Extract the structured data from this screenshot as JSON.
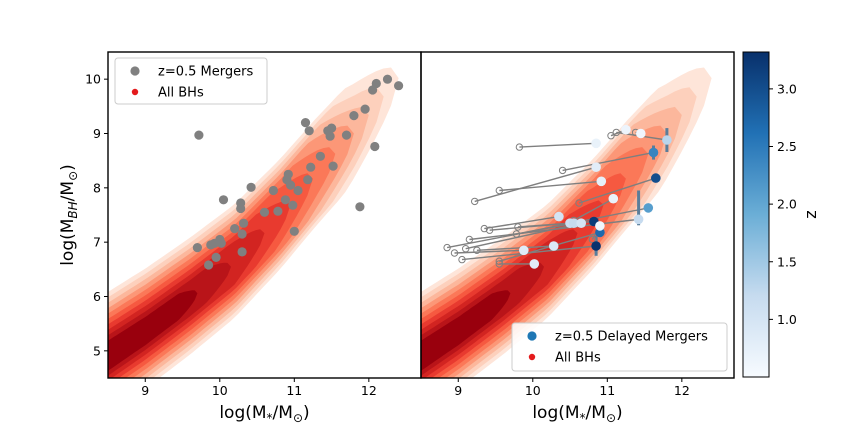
{
  "figure": {
    "panels": [
      "left",
      "right"
    ],
    "colorbar": {
      "label": "z",
      "range": [
        0.5,
        3.32
      ],
      "ticks": [
        1.0,
        1.5,
        2.0,
        2.5,
        3.0
      ],
      "tick_labels": [
        "1.0",
        "1.5",
        "2.0",
        "2.5",
        "3.0"
      ],
      "colormap": "Blues",
      "colors": [
        "#f7fbff",
        "#c6dbef",
        "#6baed6",
        "#2171b5",
        "#08306b"
      ]
    }
  },
  "chart_data": [
    {
      "type": "scatter",
      "panel": "left",
      "title": "",
      "xlabel": "log(M*/M⊙)",
      "ylabel": "log(M_BH/M⊙)",
      "xlim": [
        8.5,
        12.7
      ],
      "ylim": [
        4.5,
        10.5
      ],
      "xticks": [
        9,
        10,
        11,
        12
      ],
      "yticks": [
        5,
        6,
        7,
        8,
        9,
        10
      ],
      "legend": {
        "placement": "top-left",
        "entries": [
          {
            "label": "z=0.5 Mergers",
            "color": "#808080",
            "marker": "circle"
          },
          {
            "label": "All BHs",
            "color": "#e41a1c",
            "marker": "circle-small"
          }
        ]
      },
      "density_background": {
        "name": "All BHs",
        "colormap": "Reds",
        "levels": 10
      },
      "series": [
        {
          "name": "z=0.5 Mergers",
          "color": "#808080",
          "points": [
            [
              9.72,
              8.97
            ],
            [
              9.7,
              6.9
            ],
            [
              9.85,
              6.58
            ],
            [
              9.88,
              6.95
            ],
            [
              9.93,
              6.98
            ],
            [
              9.95,
              6.72
            ],
            [
              10.0,
              7.05
            ],
            [
              10.02,
              6.98
            ],
            [
              10.05,
              7.78
            ],
            [
              10.2,
              7.25
            ],
            [
              10.28,
              7.62
            ],
            [
              10.28,
              7.72
            ],
            [
              10.3,
              6.82
            ],
            [
              10.3,
              7.15
            ],
            [
              10.32,
              7.35
            ],
            [
              10.42,
              8.01
            ],
            [
              10.6,
              7.55
            ],
            [
              10.72,
              7.95
            ],
            [
              10.78,
              7.57
            ],
            [
              10.88,
              7.78
            ],
            [
              10.9,
              8.15
            ],
            [
              10.92,
              8.25
            ],
            [
              10.95,
              8.05
            ],
            [
              10.98,
              7.68
            ],
            [
              11.0,
              7.2
            ],
            [
              11.05,
              7.95
            ],
            [
              11.15,
              9.2
            ],
            [
              11.18,
              8.15
            ],
            [
              11.2,
              9.05
            ],
            [
              11.22,
              8.38
            ],
            [
              11.35,
              8.58
            ],
            [
              11.45,
              9.05
            ],
            [
              11.48,
              8.95
            ],
            [
              11.5,
              9.1
            ],
            [
              11.52,
              8.4
            ],
            [
              11.7,
              8.97
            ],
            [
              11.8,
              9.33
            ],
            [
              11.88,
              7.65
            ],
            [
              11.95,
              9.45
            ],
            [
              12.05,
              9.8
            ],
            [
              12.08,
              8.76
            ],
            [
              12.1,
              9.92
            ],
            [
              12.25,
              10.0
            ],
            [
              12.4,
              9.88
            ]
          ]
        }
      ]
    },
    {
      "type": "scatter",
      "panel": "right",
      "title": "",
      "xlabel": "log(M*/M⊙)",
      "ylabel": "",
      "xlim": [
        8.5,
        12.7
      ],
      "ylim": [
        4.5,
        10.5
      ],
      "xticks": [
        9,
        10,
        11,
        12
      ],
      "legend": {
        "placement": "bottom-right",
        "entries": [
          {
            "label": "z=0.5 Delayed Mergers",
            "color": "#1f77b4",
            "marker": "circle"
          },
          {
            "label": "All BHs",
            "color": "#e41a1c",
            "marker": "circle-small"
          }
        ]
      },
      "density_background": {
        "name": "All BHs",
        "colormap": "Reds",
        "levels": 10
      },
      "series": [
        {
          "name": "z=0.5 Delayed Mergers",
          "color_by": "z",
          "segments": [
            {
              "x0": 9.82,
              "y0": 8.75,
              "x1": 10.85,
              "y1": 8.82,
              "z": 0.7
            },
            {
              "x0": 9.55,
              "y0": 7.95,
              "x1": 10.92,
              "y1": 8.12,
              "z": 0.75
            },
            {
              "x0": 9.22,
              "y0": 7.75,
              "x1": 10.85,
              "y1": 8.38,
              "z": 0.8
            },
            {
              "x0": 10.4,
              "y0": 8.32,
              "x1": 11.62,
              "y1": 8.65,
              "z": 2.4
            },
            {
              "x0": 10.62,
              "y0": 7.72,
              "x1": 11.65,
              "y1": 8.18,
              "z": 3.0
            },
            {
              "x0": 11.12,
              "y0": 9.02,
              "x1": 11.8,
              "y1": 8.88,
              "z": 1.3
            },
            {
              "x0": 11.38,
              "y0": 9.02,
              "x1": 11.45,
              "y1": 9.0,
              "z": 0.6
            },
            {
              "x0": 11.05,
              "y0": 8.96,
              "x1": 11.25,
              "y1": 9.07,
              "z": 0.65
            },
            {
              "x0": 9.35,
              "y0": 7.25,
              "x1": 10.35,
              "y1": 7.47,
              "z": 1.0
            },
            {
              "x0": 9.8,
              "y0": 7.28,
              "x1": 10.82,
              "y1": 7.38,
              "z": 3.2
            },
            {
              "x0": 9.78,
              "y0": 7.15,
              "x1": 11.55,
              "y1": 7.63,
              "z": 2.1
            },
            {
              "x0": 9.42,
              "y0": 7.22,
              "x1": 10.5,
              "y1": 7.35,
              "z": 1.1
            },
            {
              "x0": 9.15,
              "y0": 7.05,
              "x1": 11.42,
              "y1": 7.42,
              "z": 1.2
            },
            {
              "x0": 8.85,
              "y0": 6.9,
              "x1": 10.55,
              "y1": 7.35,
              "z": 1.2
            },
            {
              "x0": 9.1,
              "y0": 6.88,
              "x1": 10.65,
              "y1": 7.35,
              "z": 1.0
            },
            {
              "x0": 9.25,
              "y0": 6.85,
              "x1": 10.28,
              "y1": 6.93,
              "z": 0.9
            },
            {
              "x0": 8.95,
              "y0": 6.8,
              "x1": 9.88,
              "y1": 6.85,
              "z": 0.85
            },
            {
              "x0": 9.55,
              "y0": 6.65,
              "x1": 10.9,
              "y1": 7.18,
              "z": 2.7
            },
            {
              "x0": 9.05,
              "y0": 6.68,
              "x1": 10.85,
              "y1": 6.93,
              "z": 3.3
            },
            {
              "x0": 9.55,
              "y0": 6.6,
              "x1": 10.02,
              "y1": 6.6,
              "z": 0.8
            },
            {
              "x0": 10.8,
              "y0": 7.05,
              "x1": 10.9,
              "y1": 7.3,
              "z": 0.6
            },
            {
              "x0": 10.55,
              "y0": 7.4,
              "x1": 11.08,
              "y1": 7.8,
              "z": 0.7
            }
          ],
          "error_bars": [
            {
              "x": 11.8,
              "y": 8.88,
              "err": 0.22
            },
            {
              "x": 11.62,
              "y": 8.65,
              "err": 0.13
            },
            {
              "x": 11.42,
              "y": 7.63,
              "err": 0.32
            },
            {
              "x": 10.85,
              "y": 6.93,
              "err": 0.18
            }
          ]
        }
      ]
    }
  ]
}
